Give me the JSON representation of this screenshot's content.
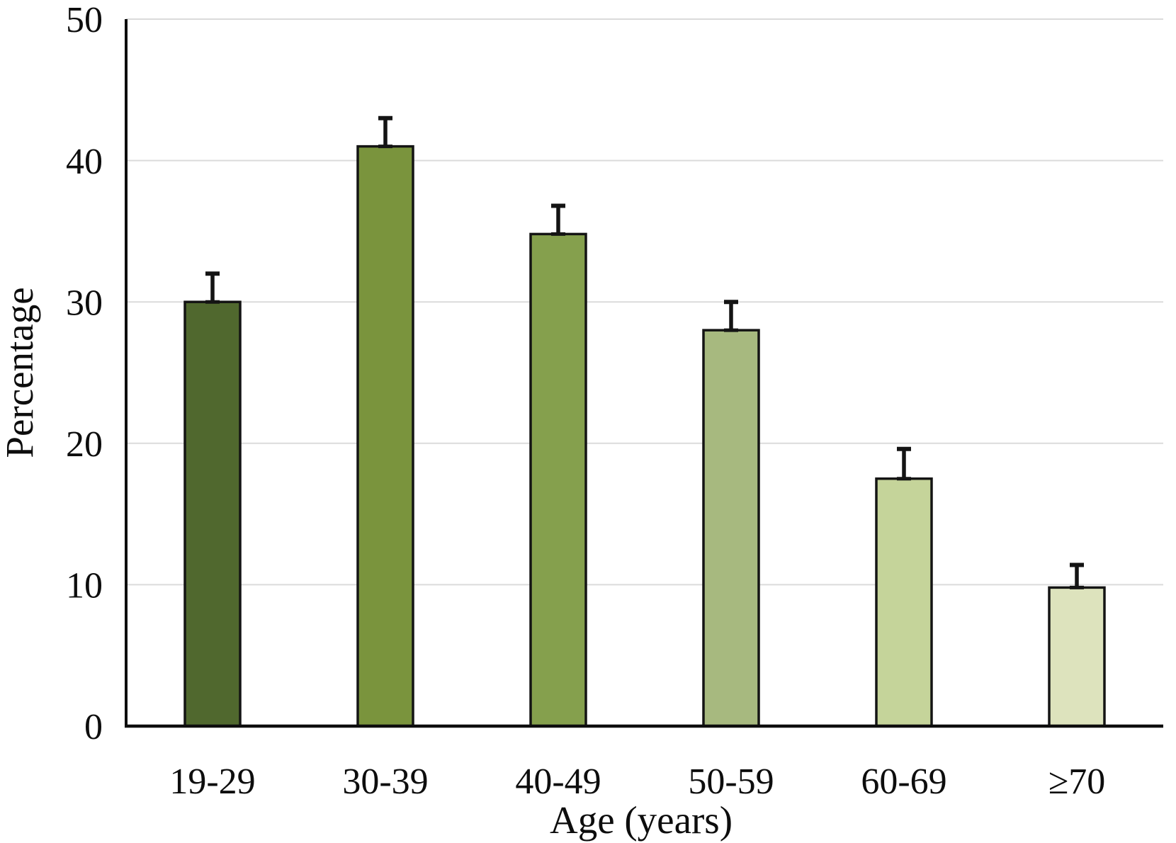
{
  "chart_data": {
    "type": "bar",
    "title": "",
    "xlabel": "Age (years)",
    "ylabel": "Percentage",
    "categories": [
      "19-29",
      "30-39",
      "40-49",
      "50-59",
      "60-69",
      "≥70"
    ],
    "values": [
      30,
      41,
      34.8,
      28,
      17.5,
      9.8
    ],
    "error_plus": [
      2,
      2,
      2,
      2,
      2.1,
      1.6
    ],
    "bar_colors": [
      "#50682e",
      "#7a943d",
      "#85a04d",
      "#a7b97f",
      "#c5d49a",
      "#dde3bd"
    ],
    "bar_outline_color": "#141414",
    "yticks": [
      0,
      10,
      20,
      30,
      40,
      50
    ],
    "ylim": [
      0,
      50
    ],
    "grid": "horizontal",
    "gridline_color": "#dbdbdb",
    "axis_color": "#0d0d0d",
    "error_bar_color": "#141414",
    "legend": "none"
  }
}
